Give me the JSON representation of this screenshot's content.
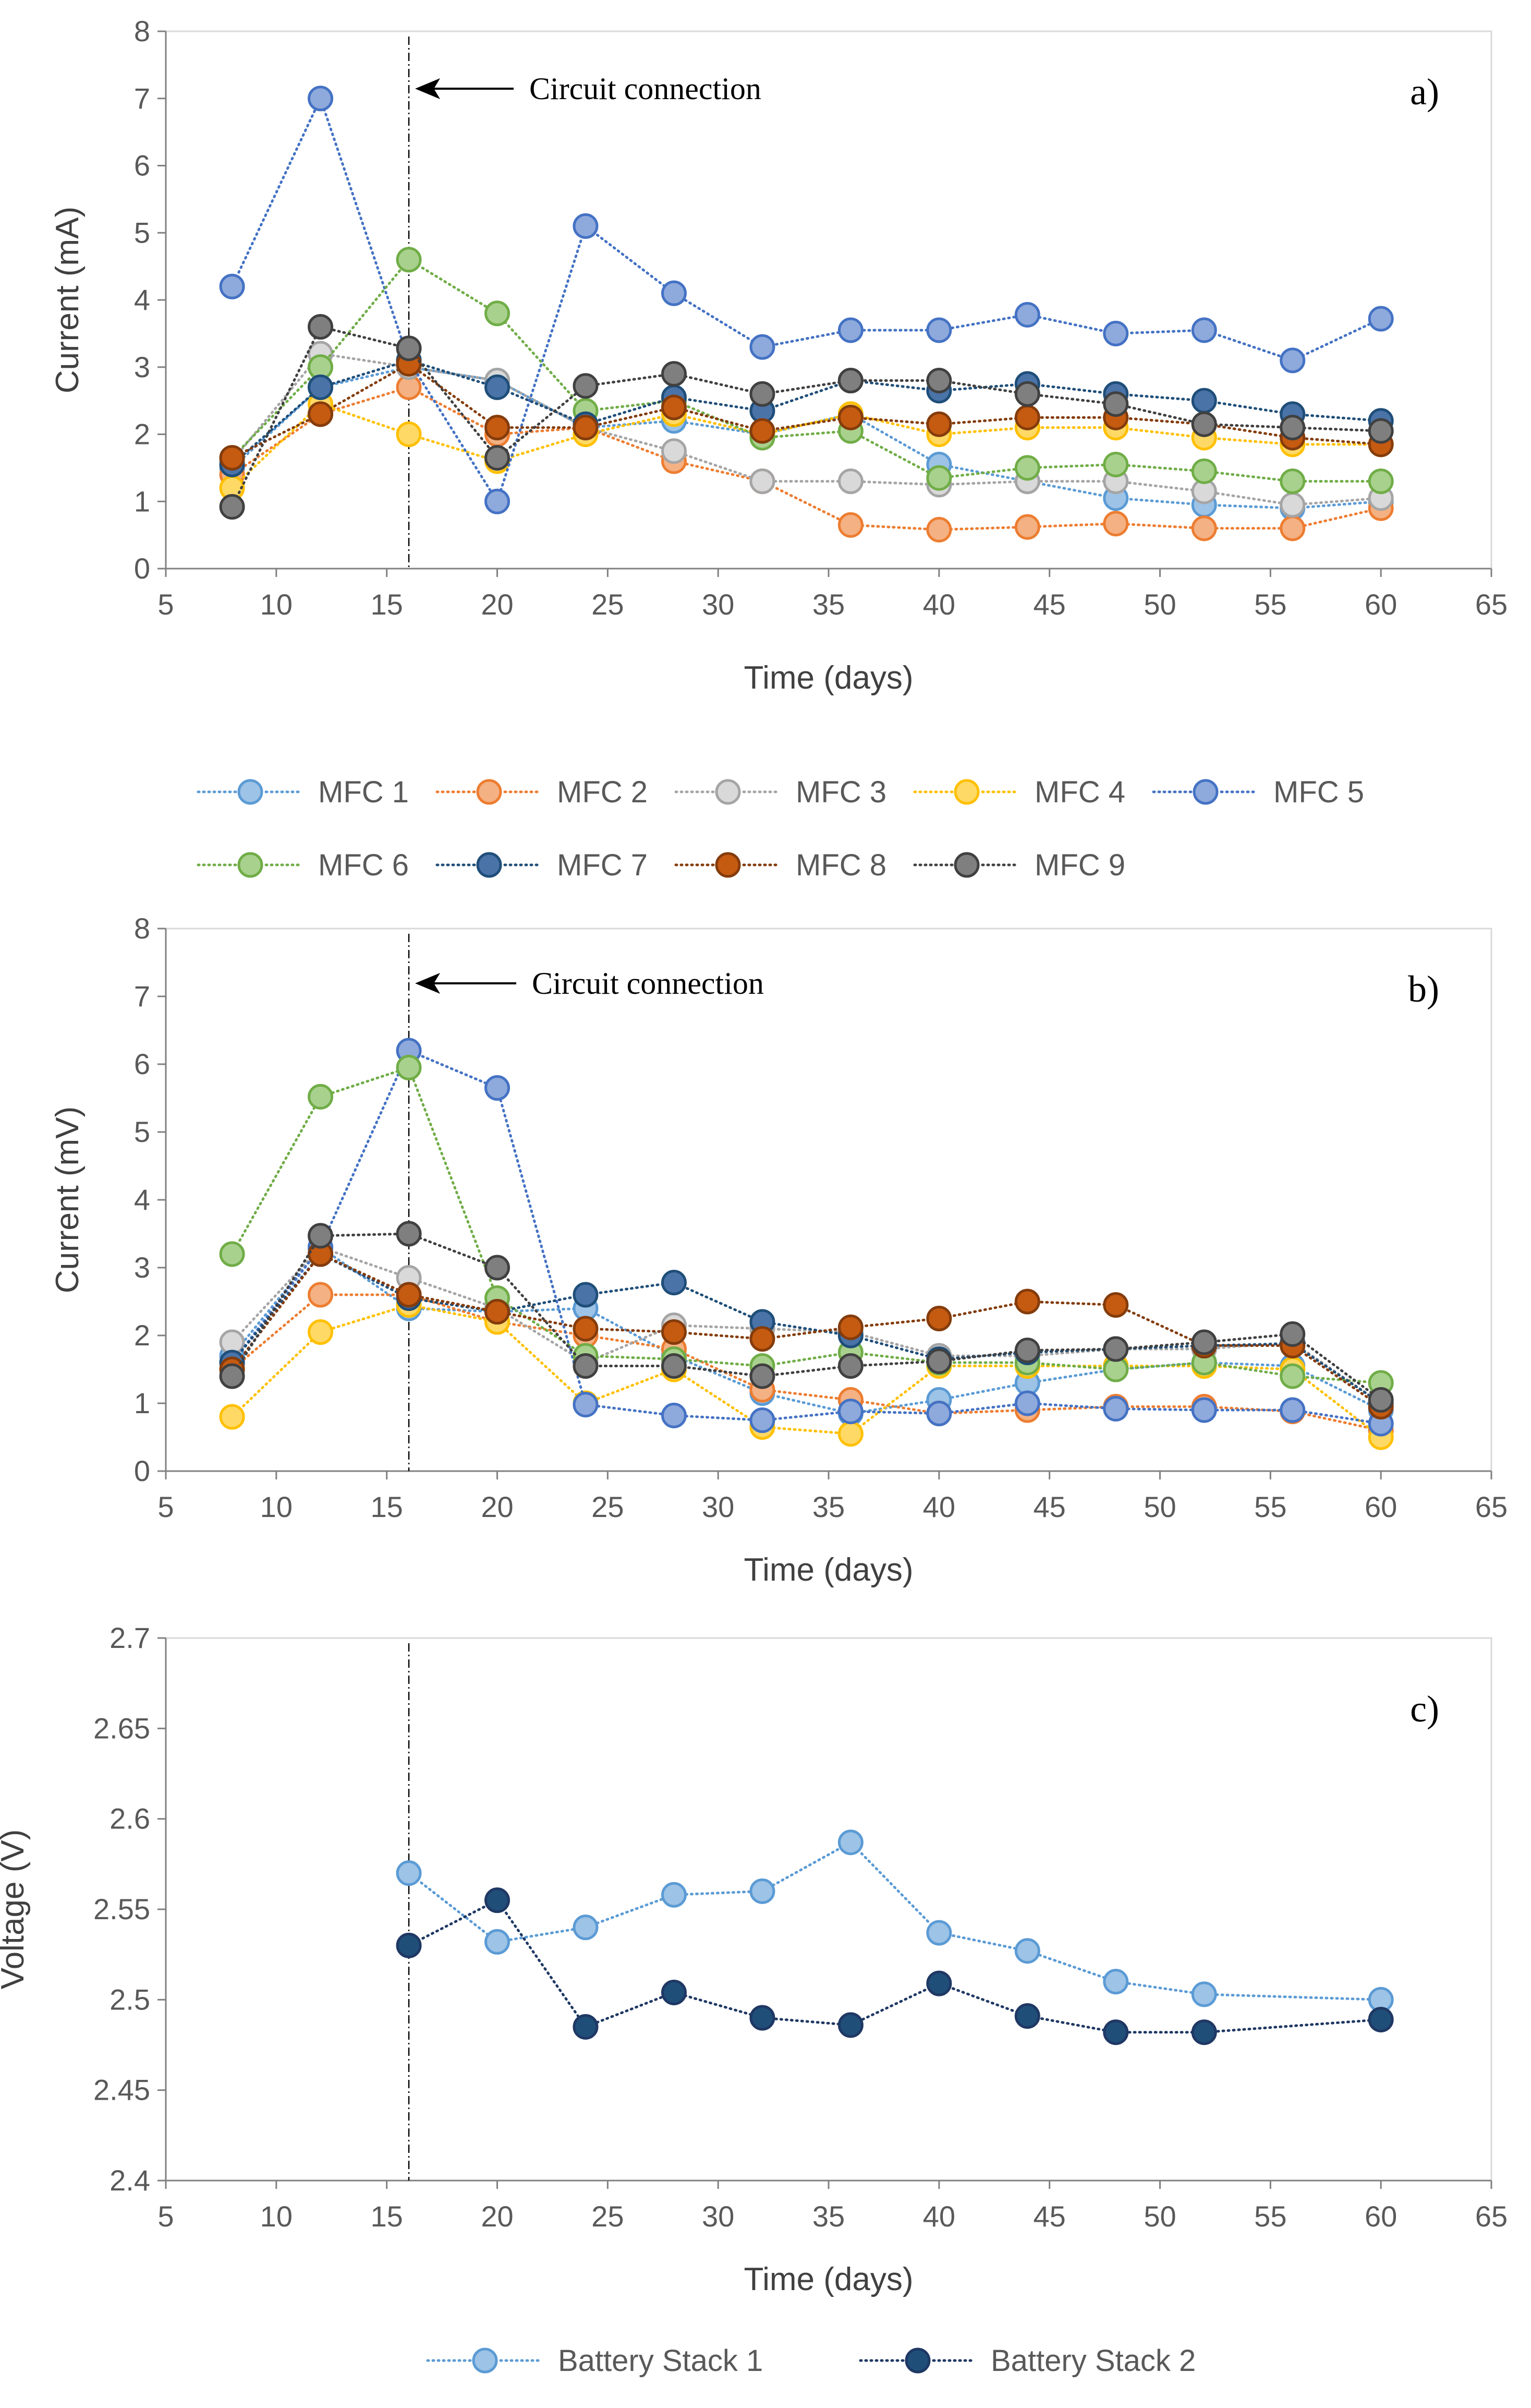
{
  "chart_data": [
    {
      "type": "line",
      "panel_label": "a)",
      "xlabel": "Time (days)",
      "ylabel": "Current (mA)",
      "xlim": [
        5,
        65
      ],
      "ylim": [
        0,
        8
      ],
      "xticks": [
        "5",
        "10",
        "15",
        "20",
        "25",
        "30",
        "35",
        "40",
        "45",
        "50",
        "55",
        "60",
        "65"
      ],
      "yticks": [
        "0",
        "1",
        "2",
        "3",
        "4",
        "5",
        "6",
        "7",
        "8"
      ],
      "annotation": "Circuit connection",
      "vline_x": 16,
      "x": [
        8,
        12,
        16,
        20,
        24,
        28,
        32,
        36,
        40,
        44,
        48,
        52,
        56,
        60
      ],
      "series": [
        {
          "name": "MFC 1",
          "fill": "#9DC3E6",
          "stroke": "#5B9BD5",
          "values": [
            1.5,
            2.7,
            3.0,
            2.8,
            2.1,
            2.2,
            2.0,
            2.3,
            1.55,
            1.3,
            1.05,
            0.95,
            0.9,
            1.0
          ]
        },
        {
          "name": "MFC 2",
          "fill": "#F4B183",
          "stroke": "#ED7D31",
          "values": [
            1.4,
            2.3,
            2.7,
            2.0,
            2.1,
            1.6,
            1.3,
            0.65,
            0.58,
            0.62,
            0.67,
            0.6,
            0.6,
            0.9
          ]
        },
        {
          "name": "MFC 3",
          "fill": "#D9D9D9",
          "stroke": "#A5A5A5",
          "values": [
            1.6,
            3.2,
            3.0,
            2.8,
            2.1,
            1.75,
            1.3,
            1.3,
            1.25,
            1.3,
            1.3,
            1.15,
            0.95,
            1.05
          ]
        },
        {
          "name": "MFC 4",
          "fill": "#FFD966",
          "stroke": "#FFC000",
          "values": [
            1.2,
            2.45,
            2.0,
            1.6,
            2.0,
            2.3,
            2.0,
            2.3,
            2.0,
            2.1,
            2.1,
            1.95,
            1.85,
            1.85
          ]
        },
        {
          "name": "MFC 5",
          "fill": "#8EA9DB",
          "stroke": "#4472C4",
          "values": [
            4.2,
            7.0,
            3.1,
            1.0,
            5.1,
            4.1,
            3.3,
            3.55,
            3.55,
            3.78,
            3.5,
            3.55,
            3.1,
            3.72
          ]
        },
        {
          "name": "MFC 6",
          "fill": "#A9D18E",
          "stroke": "#70AD47",
          "values": [
            1.65,
            3.0,
            4.6,
            3.8,
            2.35,
            2.5,
            1.95,
            2.05,
            1.35,
            1.5,
            1.55,
            1.45,
            1.3,
            1.3
          ]
        },
        {
          "name": "MFC 7",
          "fill": "#4A73A8",
          "stroke": "#1F4E79",
          "values": [
            1.55,
            2.7,
            3.1,
            2.7,
            2.15,
            2.55,
            2.35,
            2.8,
            2.65,
            2.75,
            2.6,
            2.5,
            2.3,
            2.2
          ]
        },
        {
          "name": "MFC 8",
          "fill": "#C55A11",
          "stroke": "#843C0C",
          "values": [
            1.65,
            2.3,
            3.05,
            2.1,
            2.1,
            2.4,
            2.05,
            2.25,
            2.15,
            2.25,
            2.25,
            2.15,
            1.95,
            1.85
          ]
        },
        {
          "name": "MFC 9",
          "fill": "#7F7F7F",
          "stroke": "#404040",
          "values": [
            0.92,
            3.6,
            3.28,
            1.65,
            2.72,
            2.9,
            2.6,
            2.8,
            2.8,
            2.6,
            2.45,
            2.15,
            2.1,
            2.05
          ]
        }
      ]
    },
    {
      "type": "line",
      "panel_label": "b)",
      "xlabel": "Time (days)",
      "ylabel": "Current (mV)",
      "xlim": [
        5,
        65
      ],
      "ylim": [
        0,
        8
      ],
      "xticks": [
        "5",
        "10",
        "15",
        "20",
        "25",
        "30",
        "35",
        "40",
        "45",
        "50",
        "55",
        "60",
        "65"
      ],
      "yticks": [
        "0",
        "1",
        "2",
        "3",
        "4",
        "5",
        "6",
        "7",
        "8"
      ],
      "annotation": "Circuit connection",
      "vline_x": 16,
      "x": [
        8,
        12,
        16,
        20,
        24,
        28,
        32,
        36,
        40,
        44,
        48,
        52,
        56,
        60
      ],
      "series": [
        {
          "name": "MFC 1",
          "fill": "#9DC3E6",
          "stroke": "#5B9BD5",
          "values": [
            1.7,
            3.3,
            2.4,
            2.35,
            2.4,
            1.7,
            1.15,
            0.85,
            1.05,
            1.3,
            1.5,
            1.6,
            1.55,
            0.9
          ]
        },
        {
          "name": "MFC 2",
          "fill": "#F4B183",
          "stroke": "#ED7D31",
          "values": [
            1.5,
            2.6,
            2.6,
            2.2,
            2.0,
            1.8,
            1.2,
            1.05,
            0.85,
            0.9,
            0.95,
            0.95,
            0.88,
            0.6
          ]
        },
        {
          "name": "MFC 3",
          "fill": "#D9D9D9",
          "stroke": "#A5A5A5",
          "values": [
            1.9,
            3.3,
            2.85,
            2.4,
            1.6,
            2.15,
            2.1,
            2.05,
            1.7,
            1.7,
            1.8,
            1.8,
            1.9,
            1.0
          ]
        },
        {
          "name": "MFC 4",
          "fill": "#FFD966",
          "stroke": "#FFC000",
          "values": [
            0.8,
            2.05,
            2.45,
            2.2,
            1.0,
            1.5,
            0.65,
            0.55,
            1.55,
            1.55,
            1.55,
            1.55,
            1.5,
            0.5
          ]
        },
        {
          "name": "MFC 5",
          "fill": "#8EA9DB",
          "stroke": "#4472C4",
          "values": [
            1.6,
            3.3,
            6.2,
            5.65,
            0.98,
            0.82,
            0.75,
            0.88,
            0.85,
            1.0,
            0.92,
            0.9,
            0.9,
            0.7
          ]
        },
        {
          "name": "MFC 6",
          "fill": "#A9D18E",
          "stroke": "#70AD47",
          "values": [
            3.2,
            5.52,
            5.95,
            2.55,
            1.7,
            1.65,
            1.55,
            1.75,
            1.6,
            1.6,
            1.5,
            1.6,
            1.4,
            1.3
          ]
        },
        {
          "name": "MFC 7",
          "fill": "#4A73A8",
          "stroke": "#1F4E79",
          "values": [
            1.6,
            3.2,
            2.55,
            2.35,
            2.6,
            2.78,
            2.2,
            2.0,
            1.65,
            1.75,
            1.8,
            1.85,
            1.88,
            1.0
          ]
        },
        {
          "name": "MFC 8",
          "fill": "#C55A11",
          "stroke": "#843C0C",
          "values": [
            1.5,
            3.2,
            2.6,
            2.35,
            2.1,
            2.05,
            1.95,
            2.12,
            2.25,
            2.5,
            2.45,
            1.85,
            1.85,
            0.95
          ]
        },
        {
          "name": "MFC 9",
          "fill": "#7F7F7F",
          "stroke": "#404040",
          "values": [
            1.4,
            3.47,
            3.5,
            3.0,
            1.55,
            1.55,
            1.4,
            1.55,
            1.62,
            1.78,
            1.8,
            1.9,
            2.02,
            1.05
          ]
        }
      ]
    },
    {
      "type": "line",
      "panel_label": "c)",
      "xlabel": "Time (days)",
      "ylabel": "Voltage (V)",
      "xlim": [
        5,
        65
      ],
      "ylim": [
        2.4,
        2.7
      ],
      "xticks": [
        "5",
        "10",
        "15",
        "20",
        "25",
        "30",
        "35",
        "40",
        "45",
        "50",
        "55",
        "60",
        "65"
      ],
      "yticks": [
        "2.4",
        "2.45",
        "2.5",
        "2.55",
        "2.6",
        "2.65",
        "2.7"
      ],
      "vline_x": 16,
      "x": [
        16,
        20,
        24,
        28,
        32,
        36,
        40,
        44,
        48,
        52,
        60
      ],
      "series": [
        {
          "name": "Battery Stack 1",
          "fill": "#9DC3E6",
          "stroke": "#5B9BD5",
          "values": [
            2.57,
            2.532,
            2.54,
            2.558,
            2.56,
            2.587,
            2.537,
            2.527,
            2.51,
            2.503,
            2.5
          ]
        },
        {
          "name": "Battery Stack 2",
          "fill": "#1F4E79",
          "stroke": "#1F3864",
          "values": [
            2.53,
            2.555,
            2.485,
            2.504,
            2.49,
            2.486,
            2.509,
            2.491,
            2.482,
            2.482,
            2.489
          ]
        }
      ]
    }
  ],
  "legend_ab": [
    "MFC 1",
    "MFC 2",
    "MFC 3",
    "MFC 4",
    "MFC 5",
    "MFC 6",
    "MFC 7",
    "MFC 8",
    "MFC 9"
  ],
  "legend_c": [
    "Battery Stack 1",
    "Battery Stack 2"
  ]
}
